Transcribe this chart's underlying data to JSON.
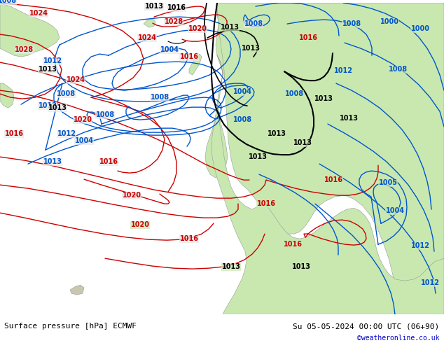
{
  "title_left": "Surface pressure [hPa] ECMWF",
  "title_right": "Su 05-05-2024 00:00 UTC (06+90)",
  "credit": "©weatheronline.co.uk",
  "bg_sea": "#e8e8e8",
  "bg_land_green": "#c8e8b0",
  "bg_land_grey": "#b8b8b8",
  "red": "#cc0000",
  "blue": "#0055cc",
  "black": "#000000",
  "footer_bg": "#e8e8e8",
  "footer_fontsize": 8,
  "credit_color": "#0000cc",
  "figsize": [
    6.34,
    4.9
  ],
  "dpi": 100
}
